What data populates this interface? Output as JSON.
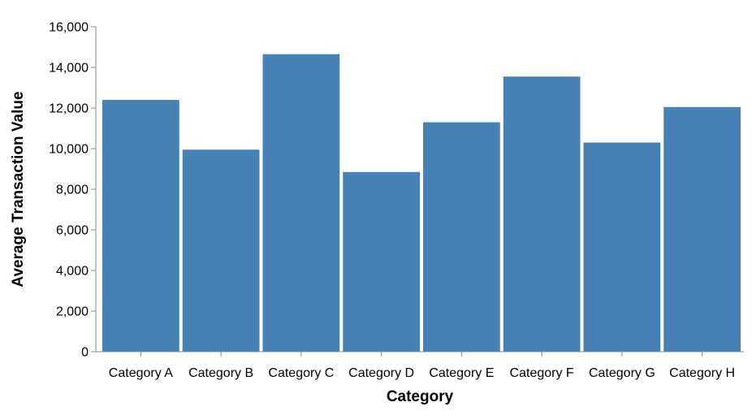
{
  "chart_data": {
    "type": "bar",
    "title": "",
    "xlabel": "Category",
    "ylabel": "Average Transaction Value",
    "categories": [
      "Category A",
      "Category B",
      "Category C",
      "Category D",
      "Category E",
      "Category F",
      "Category G",
      "Category H"
    ],
    "values": [
      12400,
      9950,
      14650,
      8850,
      11300,
      13550,
      10300,
      12050
    ],
    "ylim": [
      0,
      16000
    ],
    "yticks": [
      0,
      2000,
      4000,
      6000,
      8000,
      10000,
      12000,
      14000,
      16000
    ],
    "ytick_labels": [
      "0",
      "2,000",
      "4,000",
      "6,000",
      "8,000",
      "10,000",
      "12,000",
      "14,000",
      "16,000"
    ],
    "grid": false,
    "bar_color": "#4682b4",
    "axis_color": "#888888"
  }
}
